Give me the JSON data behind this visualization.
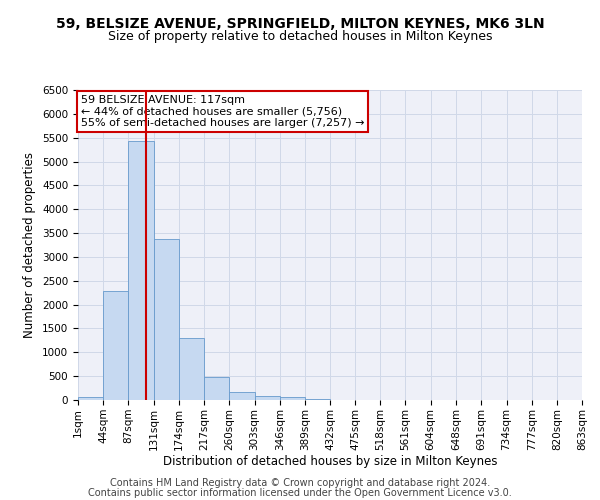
{
  "title1": "59, BELSIZE AVENUE, SPRINGFIELD, MILTON KEYNES, MK6 3LN",
  "title2": "Size of property relative to detached houses in Milton Keynes",
  "xlabel": "Distribution of detached houses by size in Milton Keynes",
  "ylabel": "Number of detached properties",
  "footer1": "Contains HM Land Registry data © Crown copyright and database right 2024.",
  "footer2": "Contains public sector information licensed under the Open Government Licence v3.0.",
  "annotation_line1": "59 BELSIZE AVENUE: 117sqm",
  "annotation_line2": "← 44% of detached houses are smaller (5,756)",
  "annotation_line3": "55% of semi-detached houses are larger (7,257) →",
  "property_size": 117,
  "bar_edges": [
    1,
    44,
    87,
    131,
    174,
    217,
    260,
    303,
    346,
    389,
    432,
    475,
    518,
    561,
    604,
    648,
    691,
    734,
    777,
    820,
    863
  ],
  "bar_values": [
    70,
    2280,
    5430,
    3380,
    1310,
    480,
    160,
    90,
    65,
    30,
    0,
    0,
    0,
    0,
    0,
    0,
    0,
    0,
    0,
    0
  ],
  "bar_color": "#c6d9f1",
  "bar_edge_color": "#6699cc",
  "vline_color": "#cc0000",
  "vline_x": 117,
  "annotation_box_color": "#cc0000",
  "ylim": [
    0,
    6500
  ],
  "yticks": [
    0,
    500,
    1000,
    1500,
    2000,
    2500,
    3000,
    3500,
    4000,
    4500,
    5000,
    5500,
    6000,
    6500
  ],
  "grid_color": "#d0d8e8",
  "bg_color": "#eef0f8",
  "fig_bg": "#ffffff",
  "title_fontsize": 10,
  "subtitle_fontsize": 9,
  "axis_label_fontsize": 8.5,
  "tick_fontsize": 7.5,
  "footer_fontsize": 7,
  "annotation_fontsize": 8
}
